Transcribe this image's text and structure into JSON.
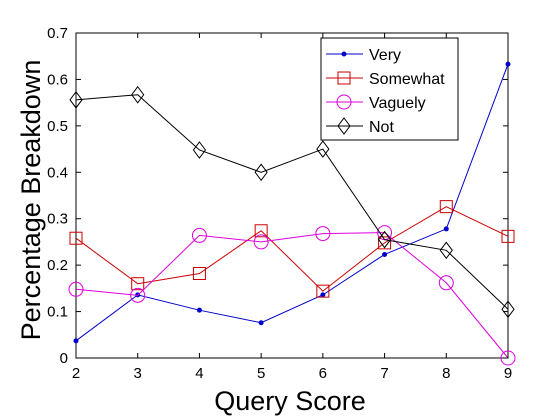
{
  "chart_data": {
    "type": "line",
    "title": "",
    "xlabel": "Query Score",
    "ylabel": "Percentage Breakdown",
    "x": [
      2,
      3,
      4,
      5,
      6,
      7,
      8,
      9
    ],
    "xlim": [
      2,
      9
    ],
    "ylim": [
      0,
      0.7
    ],
    "xticks": [
      "2",
      "3",
      "4",
      "5",
      "6",
      "7",
      "8",
      "9"
    ],
    "yticks": [
      "0",
      "0.1",
      "0.2",
      "0.3",
      "0.4",
      "0.5",
      "0.6",
      "0.7"
    ],
    "grid": false,
    "legend_position": "top-right",
    "series": [
      {
        "name": "Very",
        "color": "#0000cc",
        "marker": "dot",
        "values": [
          0.037,
          0.136,
          0.103,
          0.076,
          0.136,
          0.223,
          0.278,
          0.633
        ]
      },
      {
        "name": "Somewhat",
        "color": "#cc0000",
        "marker": "square",
        "values": [
          0.258,
          0.16,
          0.182,
          0.274,
          0.144,
          0.248,
          0.326,
          0.262
        ]
      },
      {
        "name": "Vaguely",
        "color": "#dd00dd",
        "marker": "circle",
        "values": [
          0.148,
          0.135,
          0.264,
          0.25,
          0.268,
          0.27,
          0.162,
          0.0
        ]
      },
      {
        "name": "Not",
        "color": "#000000",
        "marker": "diamond",
        "values": [
          0.556,
          0.567,
          0.448,
          0.4,
          0.45,
          0.255,
          0.232,
          0.105
        ]
      }
    ]
  }
}
